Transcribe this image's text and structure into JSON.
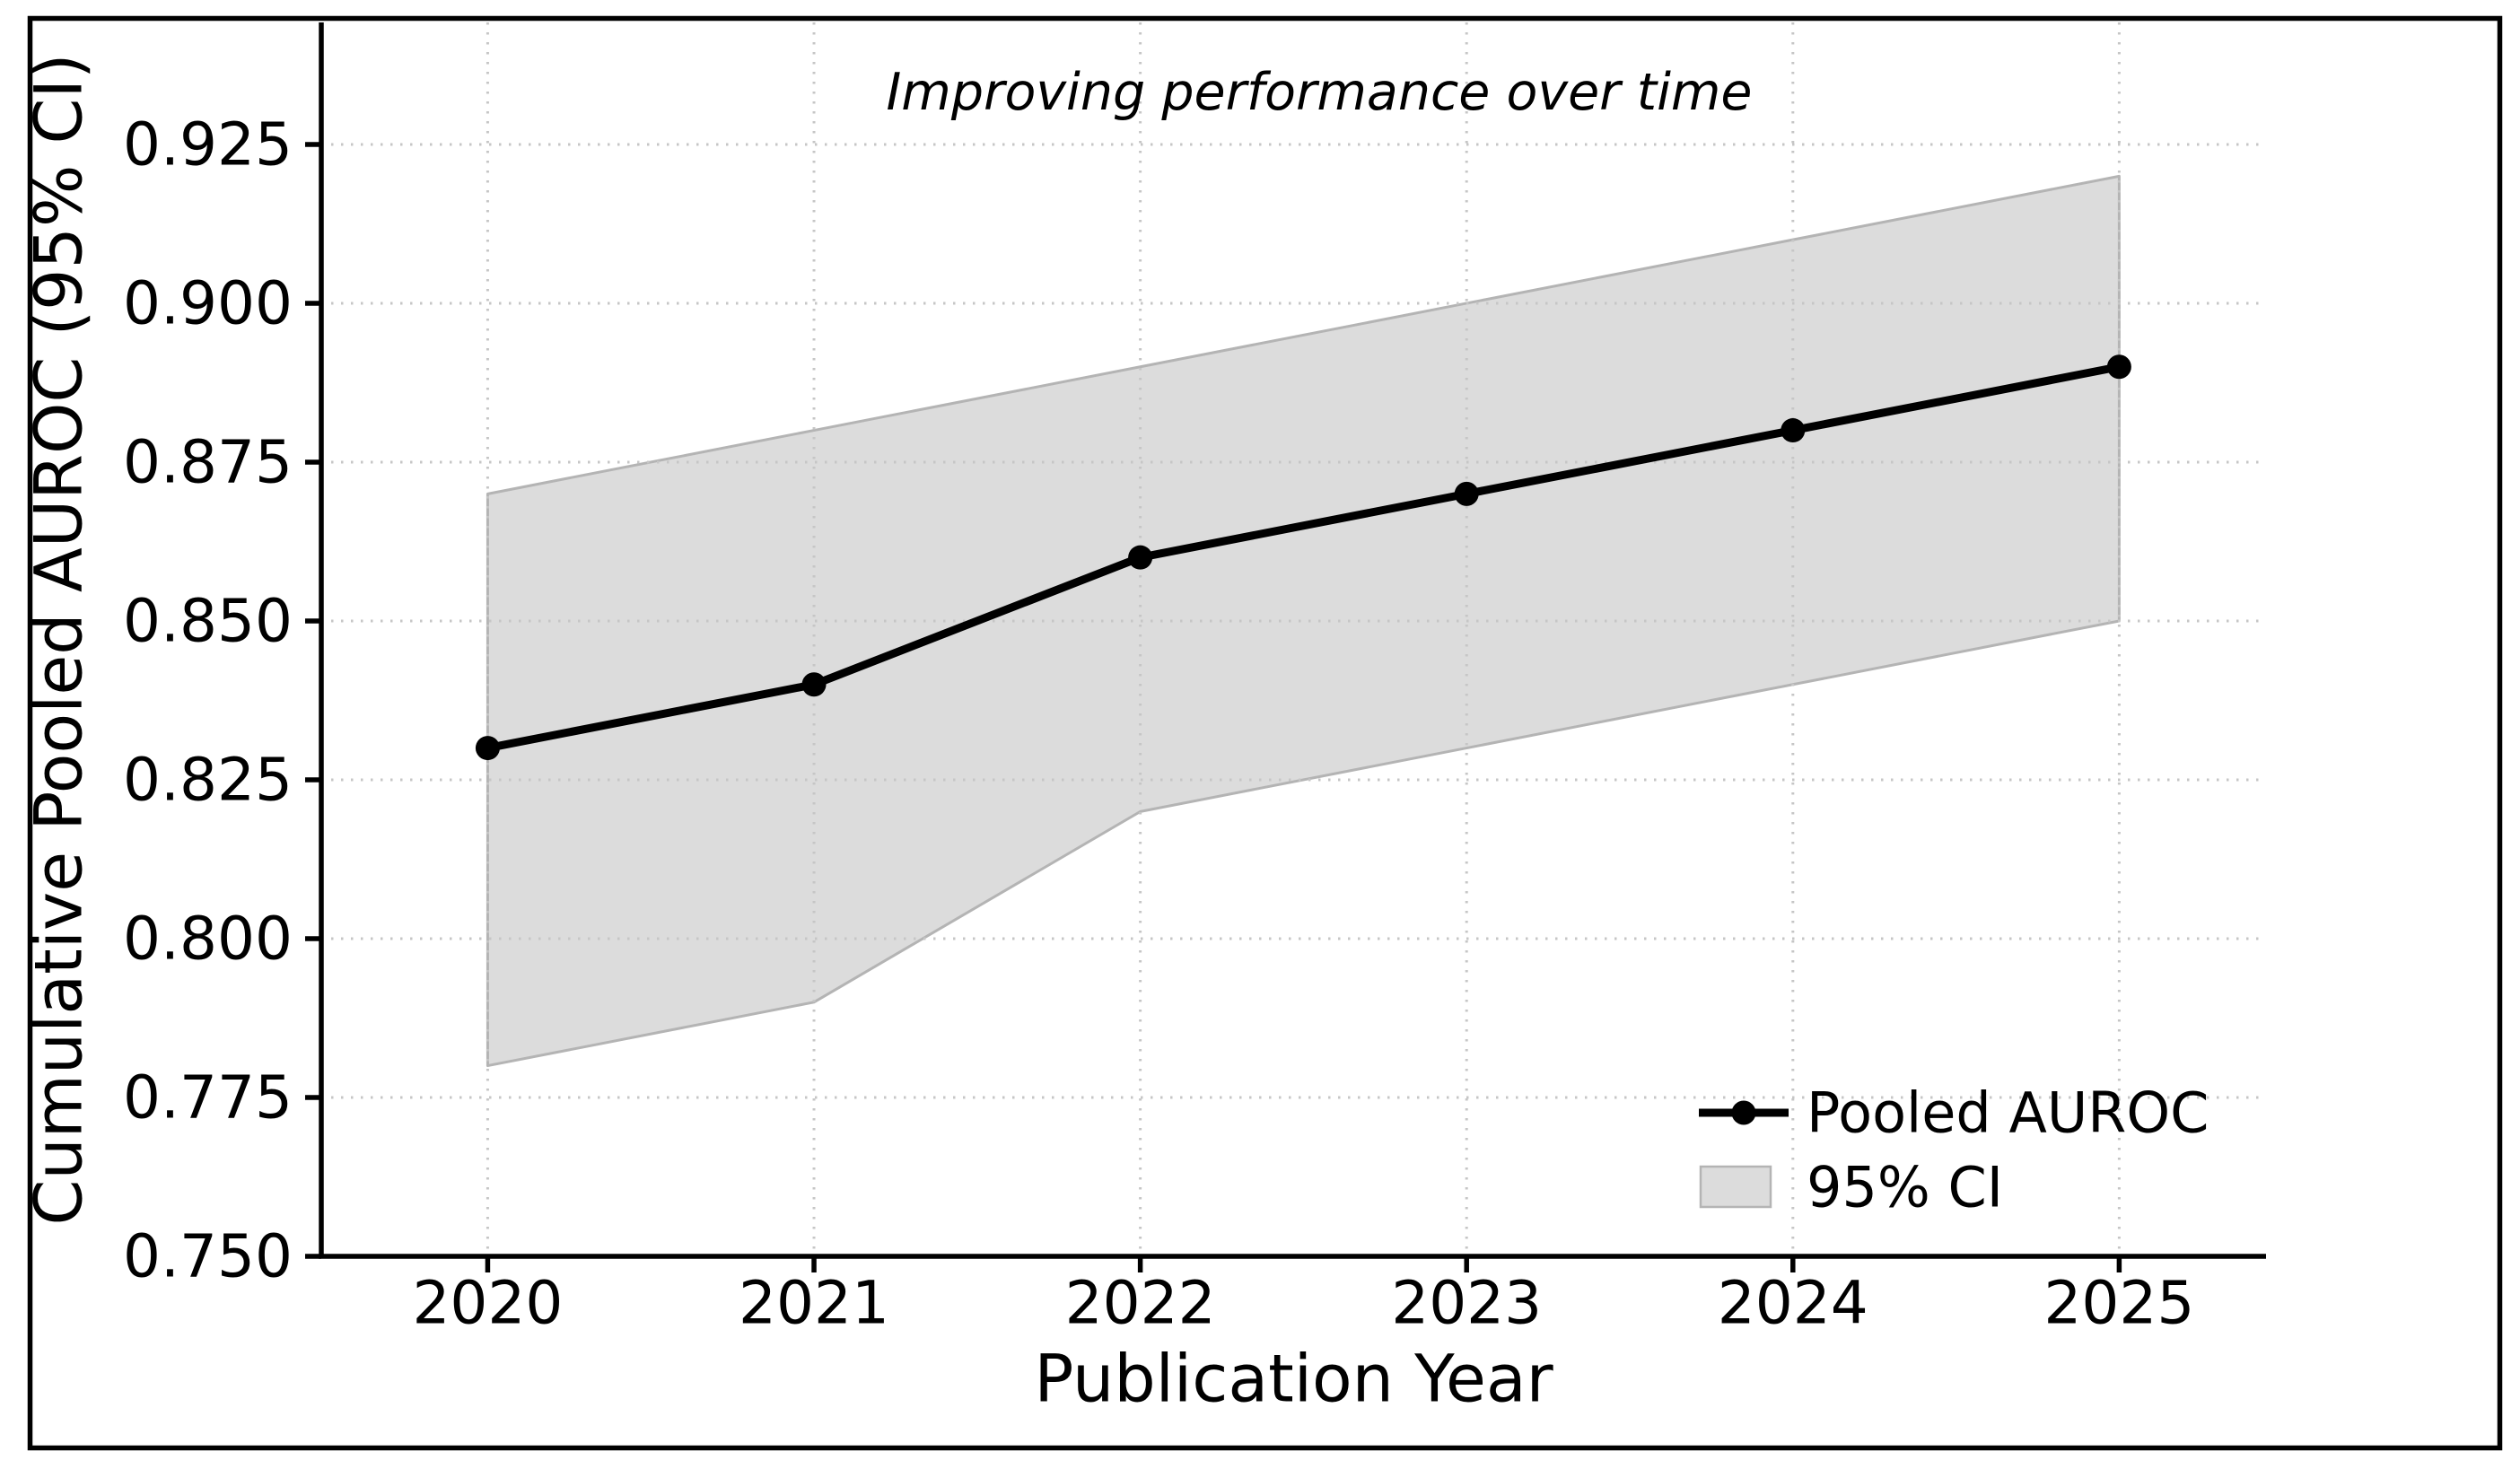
{
  "figure": {
    "background_color": "#ffffff",
    "border_color": "#000000"
  },
  "chart_data": {
    "type": "line",
    "title": "Improving performance over time",
    "title_style": "italic",
    "xlabel": "Publication Year",
    "ylabel": "Cumulative Pooled AUROC (95% CI)",
    "x": [
      2020,
      2021,
      2022,
      2023,
      2024,
      2025
    ],
    "series": [
      {
        "name": "Pooled AUROC",
        "kind": "line",
        "values": [
          0.83,
          0.84,
          0.86,
          0.87,
          0.88,
          0.89
        ],
        "color": "#000000",
        "marker": "circle"
      },
      {
        "name": "95% CI",
        "kind": "band",
        "lower": [
          0.78,
          0.79,
          0.82,
          0.83,
          0.84,
          0.85
        ],
        "upper": [
          0.87,
          0.88,
          0.89,
          0.9,
          0.91,
          0.92
        ],
        "fill_color": "#dcdcdc",
        "edge_color": "#b4b4b4"
      }
    ],
    "xlim": [
      2019.49,
      2025.45
    ],
    "ylim": [
      0.75,
      0.9442
    ],
    "xticks": [
      2020,
      2021,
      2022,
      2023,
      2024,
      2025
    ],
    "yticks": [
      0.75,
      0.775,
      0.8,
      0.825,
      0.85,
      0.875,
      0.9,
      0.925
    ],
    "ytick_labels": [
      "0.750",
      "0.775",
      "0.800",
      "0.825",
      "0.850",
      "0.875",
      "0.900",
      "0.925"
    ],
    "grid": true,
    "grid_style": "dotted",
    "grid_color": "#c6c6c6",
    "legend_position": "lower right",
    "legend": [
      "Pooled AUROC",
      "95% CI"
    ],
    "annotation": "Improving performance over time"
  }
}
